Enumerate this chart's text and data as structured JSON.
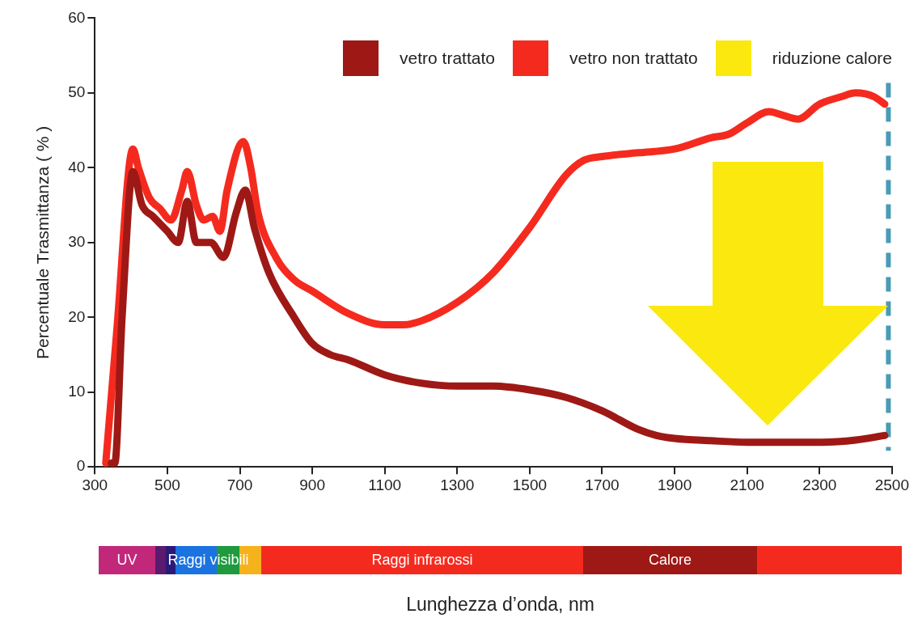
{
  "chart_data": {
    "type": "line",
    "ylabel": "Percentuale Trasmittanza ( % )",
    "xlim": [
      300,
      2500
    ],
    "xticks": [
      300,
      500,
      700,
      900,
      1100,
      1300,
      1500,
      1700,
      1900,
      2100,
      2300,
      2500
    ],
    "ylim": [
      0,
      60
    ],
    "yticks": [
      0,
      10,
      20,
      30,
      40,
      50,
      60
    ],
    "grid": false,
    "legend": "top right",
    "marker": "none",
    "line_style": "solid",
    "series": [
      {
        "name": "vetro trattato",
        "color": "#9e1915",
        "x": [
          345,
          355,
          375,
          405,
          430,
          460,
          500,
          530,
          555,
          580,
          620,
          655,
          690,
          715,
          740,
          780,
          850,
          900,
          950,
          1000,
          1100,
          1200,
          1300,
          1400,
          1500,
          1600,
          1700,
          1800,
          1850,
          1900,
          2000,
          2100,
          2200,
          2300,
          2400,
          2480
        ],
        "values": [
          0.5,
          0.5,
          20,
          39.5,
          35,
          33.5,
          31.5,
          30,
          35.5,
          30,
          30,
          28,
          34,
          37,
          32,
          26,
          20,
          16.5,
          15,
          14.3,
          12.3,
          11.2,
          10.8,
          10.8,
          10.3,
          9.3,
          7.5,
          5,
          4.2,
          3.8,
          3.5,
          3.3,
          3.3,
          3.3,
          3.6,
          4.2
        ]
      },
      {
        "name": "vetro non trattato",
        "color": "#f52a1f",
        "x": [
          330,
          360,
          405,
          420,
          450,
          480,
          510,
          540,
          555,
          580,
          600,
          625,
          645,
          665,
          710,
          730,
          750,
          800,
          850,
          900,
          1000,
          1100,
          1150,
          1200,
          1300,
          1400,
          1500,
          1600,
          1650,
          1700,
          1800,
          1900,
          2000,
          2050,
          2100,
          2160,
          2200,
          2240,
          2300,
          2360,
          2400,
          2450,
          2480
        ],
        "values": [
          0.5,
          18,
          42.5,
          40,
          36,
          34.5,
          33,
          37,
          39.5,
          35,
          33,
          33.5,
          31.5,
          37,
          43.5,
          40,
          34,
          28,
          25,
          23.5,
          20.5,
          19,
          19,
          19.5,
          22,
          26,
          32,
          39,
          41,
          41.5,
          42,
          42.5,
          44,
          44.5,
          46,
          47.5,
          47,
          46.5,
          48.5,
          49.5,
          50,
          49.5,
          48.5
        ]
      }
    ],
    "ref_lines": [
      {
        "axis": "x",
        "value": 2490,
        "color": "#4a9bb5",
        "line_style": "dashed"
      }
    ],
    "annotations": [
      "riduzione calore",
      "UV",
      "Raggi visibili",
      "Raggi infrarossi",
      "Calore",
      "Lunghezza d’onda, nm"
    ]
  }
}
